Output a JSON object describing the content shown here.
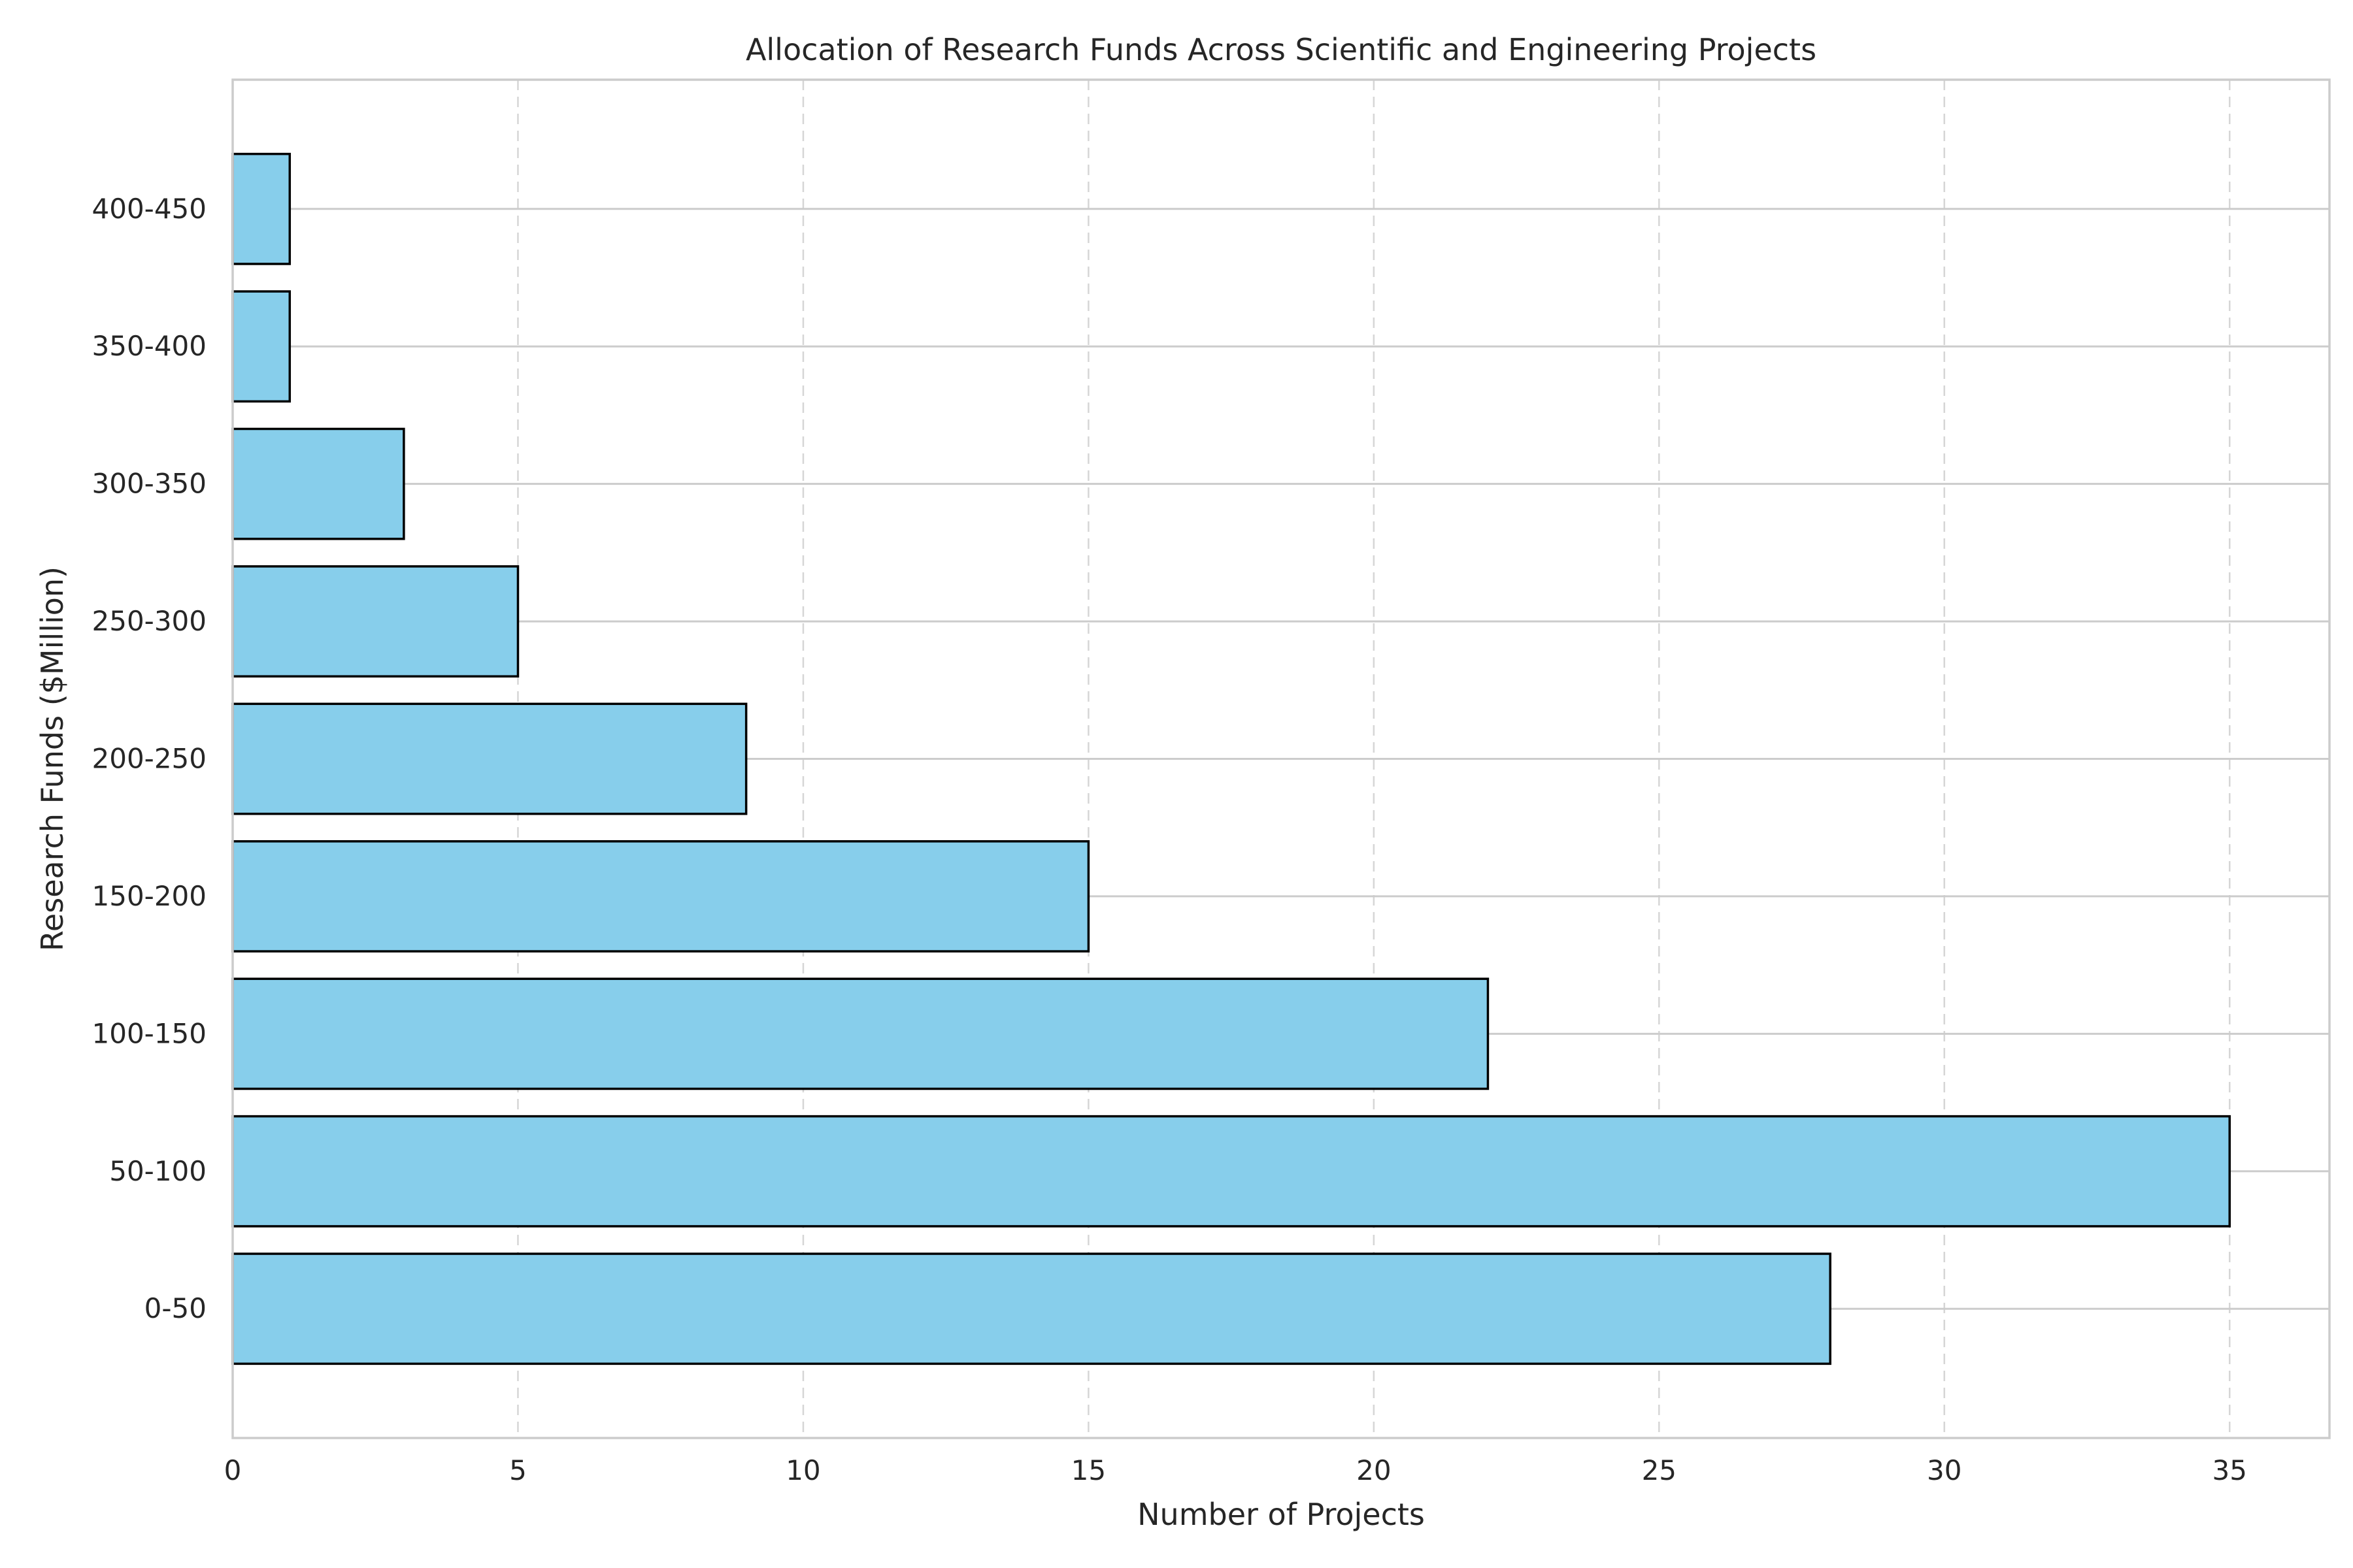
{
  "chart_data": {
    "type": "bar",
    "orientation": "horizontal",
    "title": "Allocation of Research Funds Across Scientific and Engineering Projects",
    "xlabel": "Number of Projects",
    "ylabel": "Research Funds ($Million)",
    "categories": [
      "0-50",
      "50-100",
      "100-150",
      "150-200",
      "200-250",
      "250-300",
      "300-350",
      "350-400",
      "400-450"
    ],
    "values": [
      28,
      35,
      22,
      15,
      9,
      5,
      3,
      1,
      1
    ],
    "xlim": [
      0,
      36.75
    ],
    "xticks": [
      0,
      5,
      10,
      15,
      20,
      25,
      30,
      35
    ],
    "grid": true,
    "colors": {
      "bar_fill": "#87CEEB",
      "bar_edge": "#000000"
    }
  }
}
